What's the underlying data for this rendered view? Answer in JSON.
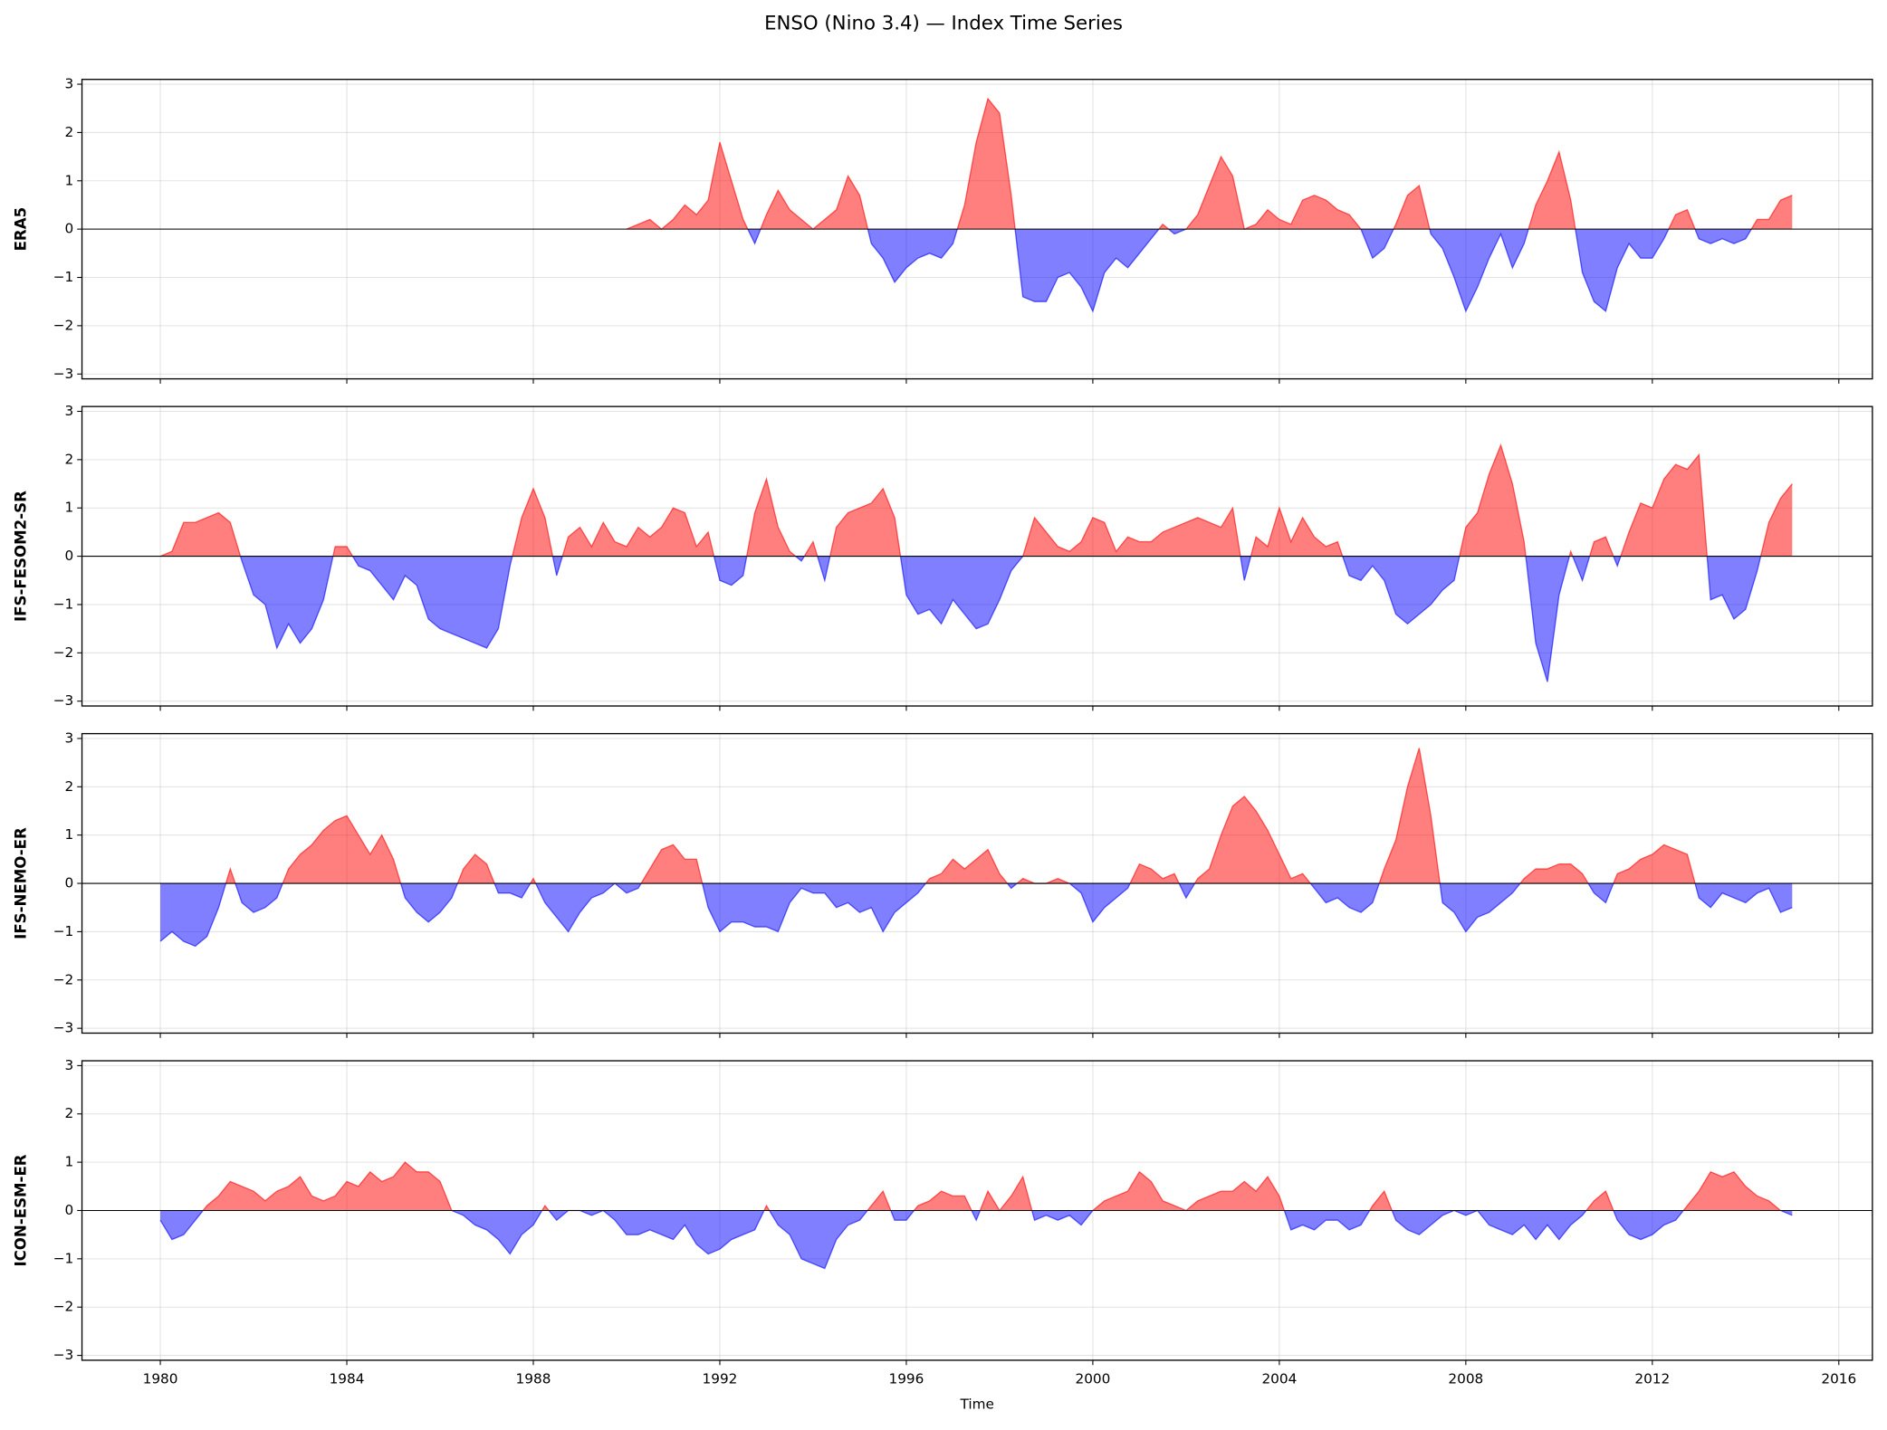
{
  "chart_data": {
    "type": "area",
    "title": "ENSO (Nino 3.4) — Index Time Series",
    "xlabel": "Time",
    "positive_color": "#ff0000",
    "negative_color": "#0000ff",
    "grid": true,
    "xlim": [
      1978.32,
      2016.72
    ],
    "xticks": [
      1980,
      1984,
      1988,
      1992,
      1996,
      2000,
      2004,
      2008,
      2012,
      2016
    ],
    "ylim": [
      -3.1,
      3.1
    ],
    "yticks": [
      {
        "value": -3,
        "label": "−3"
      },
      {
        "value": -2,
        "label": "−2"
      },
      {
        "value": -1,
        "label": "−1"
      },
      0,
      1,
      2,
      3
    ],
    "x": [
      1980,
      1980.25,
      1980.5,
      1980.75,
      1981,
      1981.25,
      1981.5,
      1981.75,
      1982,
      1982.25,
      1982.5,
      1982.75,
      1983,
      1983.25,
      1983.5,
      1983.75,
      1984,
      1984.25,
      1984.5,
      1984.75,
      1985,
      1985.25,
      1985.5,
      1985.75,
      1986,
      1986.25,
      1986.5,
      1986.75,
      1987,
      1987.25,
      1987.5,
      1987.75,
      1988,
      1988.25,
      1988.5,
      1988.75,
      1989,
      1989.25,
      1989.5,
      1989.75,
      1990,
      1990.25,
      1990.5,
      1990.75,
      1991,
      1991.25,
      1991.5,
      1991.75,
      1992,
      1992.25,
      1992.5,
      1992.75,
      1993,
      1993.25,
      1993.5,
      1993.75,
      1994,
      1994.25,
      1994.5,
      1994.75,
      1995,
      1995.25,
      1995.5,
      1995.75,
      1996,
      1996.25,
      1996.5,
      1996.75,
      1997,
      1997.25,
      1997.5,
      1997.75,
      1998,
      1998.25,
      1998.5,
      1998.75,
      1999,
      1999.25,
      1999.5,
      1999.75,
      2000,
      2000.25,
      2000.5,
      2000.75,
      2001,
      2001.25,
      2001.5,
      2001.75,
      2002,
      2002.25,
      2002.5,
      2002.75,
      2003,
      2003.25,
      2003.5,
      2003.75,
      2004,
      2004.25,
      2004.5,
      2004.75,
      2005,
      2005.25,
      2005.5,
      2005.75,
      2006,
      2006.25,
      2006.5,
      2006.75,
      2007,
      2007.25,
      2007.5,
      2007.75,
      2008,
      2008.25,
      2008.5,
      2008.75,
      2009,
      2009.25,
      2009.5,
      2009.75,
      2010,
      2010.25,
      2010.5,
      2010.75,
      2011,
      2011.25,
      2011.5,
      2011.75,
      2012,
      2012.25,
      2012.5,
      2012.75,
      2013,
      2013.25,
      2013.5,
      2013.75,
      2014,
      2014.25,
      2014.5,
      2014.75,
      2015
    ],
    "series": [
      {
        "name": "ERA5",
        "values": [
          null,
          null,
          null,
          null,
          null,
          null,
          null,
          null,
          null,
          null,
          null,
          null,
          null,
          null,
          null,
          null,
          null,
          null,
          null,
          null,
          null,
          null,
          null,
          null,
          null,
          null,
          null,
          null,
          null,
          null,
          null,
          null,
          null,
          null,
          null,
          null,
          null,
          null,
          null,
          null,
          0.0,
          0.1,
          0.2,
          0.0,
          0.2,
          0.5,
          0.3,
          0.6,
          1.8,
          1.0,
          0.2,
          -0.3,
          0.3,
          0.8,
          0.4,
          0.2,
          0.0,
          0.2,
          0.4,
          1.1,
          0.7,
          -0.3,
          -0.6,
          -1.1,
          -0.8,
          -0.6,
          -0.5,
          -0.6,
          -0.3,
          0.5,
          1.8,
          2.7,
          2.4,
          0.7,
          -1.4,
          -1.5,
          -1.5,
          -1.0,
          -0.9,
          -1.2,
          -1.7,
          -0.9,
          -0.6,
          -0.8,
          -0.5,
          -0.2,
          0.1,
          -0.1,
          0.0,
          0.3,
          0.9,
          1.5,
          1.1,
          0.0,
          0.1,
          0.4,
          0.2,
          0.1,
          0.6,
          0.7,
          0.6,
          0.4,
          0.3,
          0.0,
          -0.6,
          -0.4,
          0.1,
          0.7,
          0.9,
          -0.1,
          -0.4,
          -1.0,
          -1.7,
          -1.2,
          -0.6,
          -0.1,
          -0.8,
          -0.3,
          0.5,
          1.0,
          1.6,
          0.6,
          -0.9,
          -1.5,
          -1.7,
          -0.8,
          -0.3,
          -0.6,
          -0.6,
          -0.2,
          0.3,
          0.4,
          -0.2,
          -0.3,
          -0.2,
          -0.3,
          -0.2,
          0.2,
          0.2,
          0.6,
          0.7
        ]
      },
      {
        "name": "IFS-FESOM2-SR",
        "values": [
          0.0,
          0.1,
          0.7,
          0.7,
          0.8,
          0.9,
          0.7,
          -0.1,
          -0.8,
          -1.0,
          -1.9,
          -1.4,
          -1.8,
          -1.5,
          -0.9,
          0.2,
          0.2,
          -0.2,
          -0.3,
          -0.6,
          -0.9,
          -0.4,
          -0.6,
          -1.3,
          -1.5,
          -1.6,
          -1.7,
          -1.8,
          -1.9,
          -1.5,
          -0.2,
          0.8,
          1.4,
          0.8,
          -0.4,
          0.4,
          0.6,
          0.2,
          0.7,
          0.3,
          0.2,
          0.6,
          0.4,
          0.6,
          1.0,
          0.9,
          0.2,
          0.5,
          -0.5,
          -0.6,
          -0.4,
          0.9,
          1.6,
          0.6,
          0.1,
          -0.1,
          0.3,
          -0.5,
          0.6,
          0.9,
          1.0,
          1.1,
          1.4,
          0.8,
          -0.8,
          -1.2,
          -1.1,
          -1.4,
          -0.9,
          -1.2,
          -1.5,
          -1.4,
          -0.9,
          -0.3,
          0.0,
          0.8,
          0.5,
          0.2,
          0.1,
          0.3,
          0.8,
          0.7,
          0.1,
          0.4,
          0.3,
          0.3,
          0.5,
          0.6,
          0.7,
          0.8,
          0.7,
          0.6,
          1.0,
          -0.5,
          0.4,
          0.2,
          1.0,
          0.3,
          0.8,
          0.4,
          0.2,
          0.3,
          -0.4,
          -0.5,
          -0.2,
          -0.5,
          -1.2,
          -1.4,
          -1.2,
          -1.0,
          -0.7,
          -0.5,
          0.6,
          0.9,
          1.7,
          2.3,
          1.5,
          0.3,
          -1.8,
          -2.6,
          -0.8,
          0.1,
          -0.5,
          0.3,
          0.4,
          -0.2,
          0.5,
          1.1,
          1.0,
          1.6,
          1.9,
          1.8,
          2.1,
          -0.9,
          -0.8,
          -1.3,
          -1.1,
          -0.3,
          0.7,
          1.2,
          1.5
        ]
      },
      {
        "name": "IFS-NEMO-ER",
        "values": [
          -1.2,
          -1.0,
          -1.2,
          -1.3,
          -1.1,
          -0.5,
          0.3,
          -0.4,
          -0.6,
          -0.5,
          -0.3,
          0.3,
          0.6,
          0.8,
          1.1,
          1.3,
          1.4,
          1.0,
          0.6,
          1.0,
          0.5,
          -0.3,
          -0.6,
          -0.8,
          -0.6,
          -0.3,
          0.3,
          0.6,
          0.4,
          -0.2,
          -0.2,
          -0.3,
          0.1,
          -0.4,
          -0.7,
          -1.0,
          -0.6,
          -0.3,
          -0.2,
          0.0,
          -0.2,
          -0.1,
          0.3,
          0.7,
          0.8,
          0.5,
          0.5,
          -0.5,
          -1.0,
          -0.8,
          -0.8,
          -0.9,
          -0.9,
          -1.0,
          -0.4,
          -0.1,
          -0.2,
          -0.2,
          -0.5,
          -0.4,
          -0.6,
          -0.5,
          -1.0,
          -0.6,
          -0.4,
          -0.2,
          0.1,
          0.2,
          0.5,
          0.3,
          0.5,
          0.7,
          0.2,
          -0.1,
          0.1,
          0.0,
          0.0,
          0.1,
          0.0,
          -0.2,
          -0.8,
          -0.5,
          -0.3,
          -0.1,
          0.4,
          0.3,
          0.1,
          0.2,
          -0.3,
          0.1,
          0.3,
          1.0,
          1.6,
          1.8,
          1.5,
          1.1,
          0.6,
          0.1,
          0.2,
          -0.1,
          -0.4,
          -0.3,
          -0.5,
          -0.6,
          -0.4,
          0.3,
          0.9,
          2.0,
          2.8,
          1.4,
          -0.4,
          -0.6,
          -1.0,
          -0.7,
          -0.6,
          -0.4,
          -0.2,
          0.1,
          0.3,
          0.3,
          0.4,
          0.4,
          0.2,
          -0.2,
          -0.4,
          0.2,
          0.3,
          0.5,
          0.6,
          0.8,
          0.7,
          0.6,
          -0.3,
          -0.5,
          -0.2,
          -0.3,
          -0.4,
          -0.2,
          -0.1,
          -0.6,
          -0.5
        ]
      },
      {
        "name": "ICON-ESM-ER",
        "values": [
          -0.2,
          -0.6,
          -0.5,
          -0.2,
          0.1,
          0.3,
          0.6,
          0.5,
          0.4,
          0.2,
          0.4,
          0.5,
          0.7,
          0.3,
          0.2,
          0.3,
          0.6,
          0.5,
          0.8,
          0.6,
          0.7,
          1.0,
          0.8,
          0.8,
          0.6,
          0.0,
          -0.1,
          -0.3,
          -0.4,
          -0.6,
          -0.9,
          -0.5,
          -0.3,
          0.1,
          -0.2,
          0.0,
          0.0,
          -0.1,
          0.0,
          -0.2,
          -0.5,
          -0.5,
          -0.4,
          -0.5,
          -0.6,
          -0.3,
          -0.7,
          -0.9,
          -0.8,
          -0.6,
          -0.5,
          -0.4,
          0.1,
          -0.3,
          -0.5,
          -1.0,
          -1.1,
          -1.2,
          -0.6,
          -0.3,
          -0.2,
          0.1,
          0.4,
          -0.2,
          -0.2,
          0.1,
          0.2,
          0.4,
          0.3,
          0.3,
          -0.2,
          0.4,
          0.0,
          0.3,
          0.7,
          -0.2,
          -0.1,
          -0.2,
          -0.1,
          -0.3,
          0.0,
          0.2,
          0.3,
          0.4,
          0.8,
          0.6,
          0.2,
          0.1,
          0.0,
          0.2,
          0.3,
          0.4,
          0.4,
          0.6,
          0.4,
          0.7,
          0.3,
          -0.4,
          -0.3,
          -0.4,
          -0.2,
          -0.2,
          -0.4,
          -0.3,
          0.1,
          0.4,
          -0.2,
          -0.4,
          -0.5,
          -0.3,
          -0.1,
          0.0,
          -0.1,
          0.0,
          -0.3,
          -0.4,
          -0.5,
          -0.3,
          -0.6,
          -0.3,
          -0.6,
          -0.3,
          -0.1,
          0.2,
          0.4,
          -0.2,
          -0.5,
          -0.6,
          -0.5,
          -0.3,
          -0.2,
          0.1,
          0.4,
          0.8,
          0.7,
          0.8,
          0.5,
          0.3,
          0.2,
          0.0,
          -0.1
        ]
      }
    ]
  }
}
